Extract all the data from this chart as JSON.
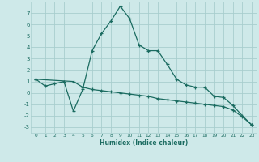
{
  "xlabel": "Humidex (Indice chaleur)",
  "background_color": "#cee9e9",
  "line_color": "#1a6b60",
  "grid_color": "#a8cece",
  "xlim": [
    -0.5,
    23.5
  ],
  "ylim": [
    -3.5,
    8.0
  ],
  "yticks": [
    -3,
    -2,
    -1,
    0,
    1,
    2,
    3,
    4,
    5,
    6,
    7
  ],
  "xticks": [
    0,
    1,
    2,
    3,
    4,
    5,
    6,
    7,
    8,
    9,
    10,
    11,
    12,
    13,
    14,
    15,
    16,
    17,
    18,
    19,
    20,
    21,
    22,
    23
  ],
  "line1_x": [
    0,
    1,
    2,
    3,
    4,
    5,
    6,
    7,
    8,
    9,
    10,
    11,
    12,
    13,
    14,
    15,
    16,
    17,
    18,
    19,
    20,
    21,
    22,
    23
  ],
  "line1_y": [
    1.2,
    0.6,
    0.8,
    1.0,
    -1.6,
    0.3,
    3.7,
    5.2,
    6.3,
    7.6,
    6.5,
    4.2,
    3.7,
    3.7,
    2.5,
    1.2,
    0.7,
    0.5,
    0.5,
    -0.3,
    -0.4,
    -1.1,
    -2.0,
    -2.8
  ],
  "line2_x": [
    0,
    4,
    5,
    6,
    7,
    8,
    9,
    10,
    11,
    12,
    13,
    14,
    15,
    16,
    17,
    18,
    19,
    20,
    21,
    22,
    23
  ],
  "line2_y": [
    1.2,
    1.0,
    0.5,
    0.3,
    0.2,
    0.1,
    0.0,
    -0.1,
    -0.2,
    -0.3,
    -0.5,
    -0.6,
    -0.7,
    -0.8,
    -0.9,
    -1.0,
    -1.1,
    -1.2,
    -1.5,
    -2.1,
    -2.8
  ]
}
